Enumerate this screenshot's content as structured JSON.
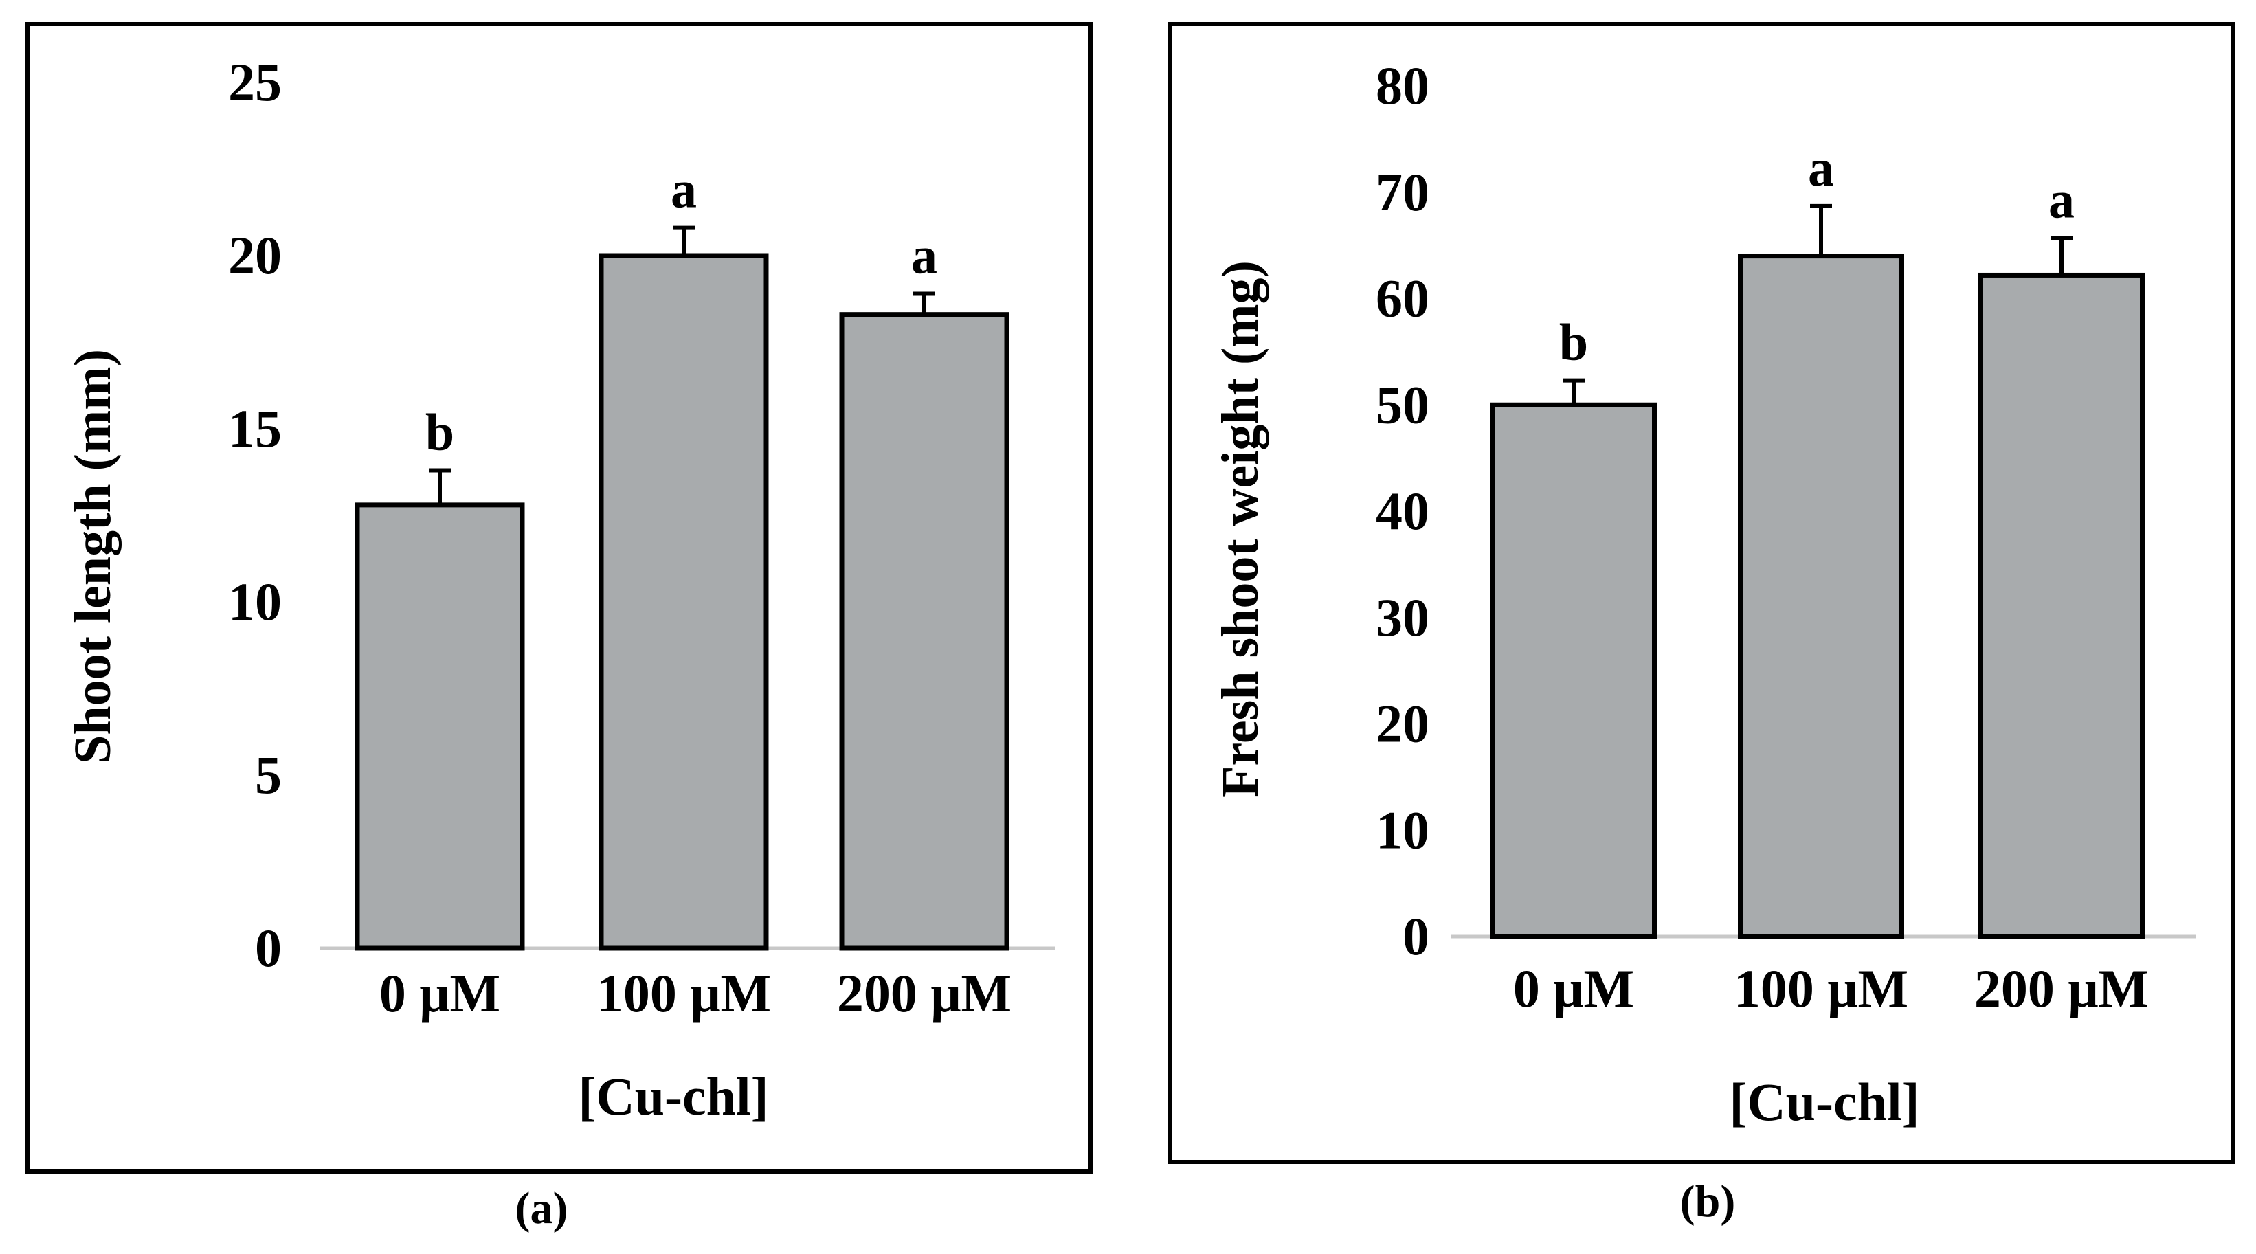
{
  "colors": {
    "bar_fill": "#a8abad",
    "bar_stroke": "#000000",
    "axis_line": "#c8c8c8",
    "frame": "#000000",
    "text": "#000000"
  },
  "chart_data": [
    {
      "id": "a",
      "type": "bar",
      "panel_label": "(a)",
      "title": "",
      "xlabel": "[Cu-chl]",
      "ylabel": "Shoot length (mm)",
      "categories": [
        "0 μM",
        "100 μM",
        "200 μM"
      ],
      "values": [
        12.8,
        20.0,
        18.3
      ],
      "errors": [
        1.0,
        0.8,
        0.6
      ],
      "significance": [
        "b",
        "a",
        "a"
      ],
      "ylim": [
        0,
        25
      ],
      "yticks": [
        0,
        5,
        10,
        15,
        20,
        25
      ],
      "grid": false,
      "legend": "none"
    },
    {
      "id": "b",
      "type": "bar",
      "panel_label": "(b)",
      "title": "",
      "xlabel": "[Cu-chl]",
      "ylabel": "Fresh shoot weight (mg)",
      "categories": [
        "0 μM",
        "100 μM",
        "200 μM"
      ],
      "values": [
        50.0,
        64.0,
        62.2
      ],
      "errors": [
        2.3,
        4.7,
        3.5
      ],
      "significance": [
        "b",
        "a",
        "a"
      ],
      "ylim": [
        0,
        80
      ],
      "yticks": [
        0,
        10,
        20,
        30,
        40,
        50,
        60,
        70,
        80
      ],
      "grid": false,
      "legend": "none"
    }
  ]
}
